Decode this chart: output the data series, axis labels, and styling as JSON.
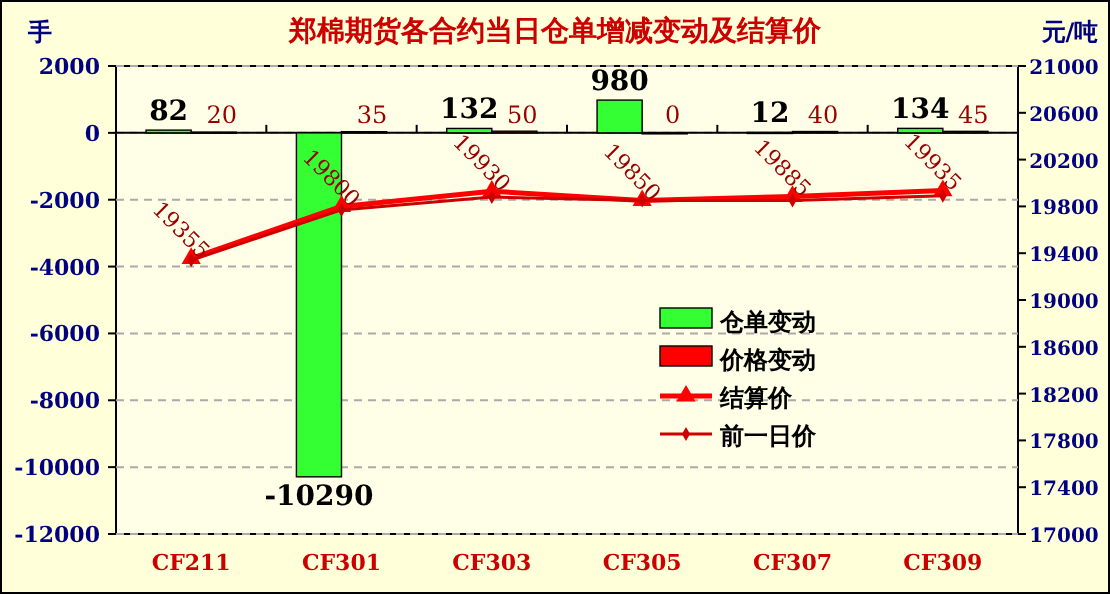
{
  "chart_data": {
    "type": "bar",
    "title": "郑棉期货各合约当日仓单增减变动及结算价",
    "ylabel": "手",
    "y2label": "元/吨",
    "categories": [
      "CF211",
      "CF301",
      "CF303",
      "CF305",
      "CF307",
      "CF309"
    ],
    "series": [
      {
        "name": "仓单变动",
        "color": "#33ff33",
        "values": [
          82,
          -10290,
          132,
          980,
          12,
          134
        ],
        "value_labels": [
          "82",
          "-10290",
          "132",
          "980",
          "12",
          "134"
        ]
      },
      {
        "name": "价格变动",
        "color": "#ff0000",
        "values": [
          20,
          35,
          50,
          0,
          40,
          45
        ],
        "value_labels": [
          "20",
          "35",
          "50",
          "0",
          "40",
          "45"
        ]
      },
      {
        "name": "结算价",
        "type": "line",
        "axis": "y2",
        "color": "#ff0000",
        "marker": "triangle",
        "values": [
          19355,
          19800,
          19930,
          19850,
          19885,
          19935
        ],
        "value_labels": [
          "19355",
          "19800",
          "19930",
          "19850",
          "19885",
          "19935"
        ]
      },
      {
        "name": "前一日价",
        "type": "line",
        "axis": "y2",
        "color": "#cc0000",
        "marker": "diamond",
        "values": [
          19340,
          19770,
          19880,
          19850,
          19850,
          19890
        ]
      }
    ],
    "ylim": [
      -12000,
      2000
    ],
    "yticks": [
      -12000,
      -10000,
      -8000,
      -6000,
      -4000,
      -2000,
      0,
      2000
    ],
    "y2lim": [
      17000,
      21000
    ],
    "y2ticks": [
      17000,
      17400,
      17800,
      18200,
      18600,
      19000,
      19400,
      19800,
      20200,
      20600,
      21000
    ],
    "grid": "y",
    "legend": "right"
  }
}
